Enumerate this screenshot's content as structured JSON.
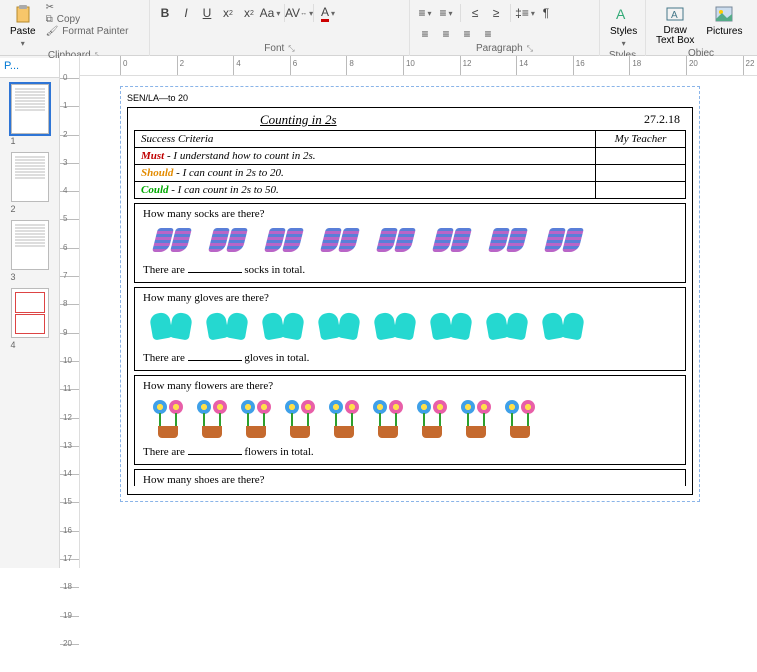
{
  "ribbon": {
    "clipboard": {
      "paste": "Paste",
      "cut": "Cut",
      "copy": "Copy",
      "format_painter": "Format Painter",
      "label": "Clipboard"
    },
    "font": {
      "label": "Font"
    },
    "paragraph": {
      "label": "Paragraph"
    },
    "styles": {
      "styles": "Styles",
      "label": "Styles"
    },
    "objects": {
      "draw_textbox": "Draw\nText Box",
      "pictures": "Pictures",
      "label": "Objec"
    }
  },
  "nav": {
    "title": "P...",
    "thumbs": [
      1,
      2,
      3,
      4
    ],
    "selected": 1
  },
  "hruler_marks": [
    0,
    2,
    4,
    6,
    8,
    10,
    12,
    14,
    16,
    18,
    20,
    22
  ],
  "vruler_marks": [
    0,
    1,
    2,
    3,
    4,
    5,
    6,
    7,
    8,
    9,
    10,
    11,
    12,
    13,
    14,
    15,
    16,
    17,
    18,
    19,
    20
  ],
  "doc": {
    "header": "SEN/LA—to 20",
    "title": "Counting in 2s",
    "date": "27.2.18",
    "criteria_header": "Success Criteria",
    "teacher_header": "My Teacher",
    "rows": [
      {
        "kw": "Must",
        "cls": "kw-must",
        "text": " - I understand how to count in 2s."
      },
      {
        "kw": "Should",
        "cls": "kw-should",
        "text": " - I can count in 2s to 20."
      },
      {
        "kw": "Could",
        "cls": "kw-could",
        "text": " - I can count in 2s to 50."
      }
    ],
    "q1": {
      "q": "How many socks are there?",
      "count": 8,
      "ans_pre": "There are ",
      "ans_post": " socks in total."
    },
    "q2": {
      "q": "How many gloves are there?",
      "count": 8,
      "ans_pre": "There are ",
      "ans_post": " gloves in total."
    },
    "q3": {
      "q": "How many flowers are there?",
      "count": 9,
      "ans_pre": "There are ",
      "ans_post": " flowers in total."
    },
    "q4": {
      "q": "How many shoes are there?"
    }
  }
}
